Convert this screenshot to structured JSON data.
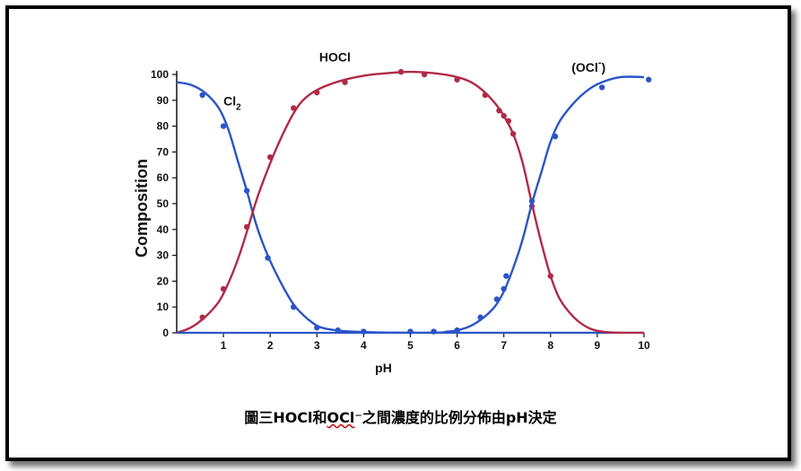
{
  "chart_data": {
    "type": "line",
    "xlabel": "pH",
    "ylabel": "Composition",
    "xlim": [
      0,
      10
    ],
    "ylim": [
      0,
      100
    ],
    "x_ticks": [
      1,
      2,
      3,
      4,
      5,
      6,
      7,
      8,
      9,
      10
    ],
    "y_ticks": [
      0,
      10,
      20,
      30,
      40,
      50,
      60,
      70,
      80,
      90,
      100
    ],
    "series": [
      {
        "name": "Cl2",
        "color": "#2a55c8",
        "curve": [
          [
            0,
            97
          ],
          [
            0.3,
            96
          ],
          [
            0.6,
            93
          ],
          [
            0.9,
            87
          ],
          [
            1.1,
            79
          ],
          [
            1.3,
            67
          ],
          [
            1.5,
            55
          ],
          [
            1.7,
            42
          ],
          [
            1.9,
            32
          ],
          [
            2.1,
            24
          ],
          [
            2.3,
            17
          ],
          [
            2.5,
            11
          ],
          [
            2.7,
            7
          ],
          [
            2.9,
            4
          ],
          [
            3.1,
            2
          ],
          [
            3.5,
            0.8
          ],
          [
            4,
            0.3
          ],
          [
            5,
            0
          ],
          [
            6,
            0
          ],
          [
            7,
            0
          ],
          [
            8,
            0
          ],
          [
            9,
            0
          ],
          [
            10,
            0
          ]
        ],
        "points": [
          [
            0.55,
            92
          ],
          [
            1.0,
            80
          ],
          [
            1.5,
            55
          ],
          [
            1.95,
            29
          ],
          [
            2.5,
            10
          ],
          [
            3.0,
            2
          ],
          [
            3.45,
            1
          ],
          [
            4.0,
            0.5
          ]
        ]
      },
      {
        "name": "HOCl",
        "color": "#b02a48",
        "curve": [
          [
            0,
            0
          ],
          [
            0.3,
            2
          ],
          [
            0.6,
            6
          ],
          [
            0.9,
            12
          ],
          [
            1.1,
            19
          ],
          [
            1.3,
            28
          ],
          [
            1.5,
            39
          ],
          [
            1.7,
            51
          ],
          [
            1.9,
            61
          ],
          [
            2.1,
            70
          ],
          [
            2.3,
            78
          ],
          [
            2.5,
            85
          ],
          [
            2.7,
            90
          ],
          [
            3.0,
            94
          ],
          [
            3.5,
            97.5
          ],
          [
            4,
            99.5
          ],
          [
            4.5,
            100.5
          ],
          [
            5,
            101
          ],
          [
            5.5,
            100.5
          ],
          [
            6,
            99
          ],
          [
            6.3,
            97
          ],
          [
            6.6,
            93
          ],
          [
            6.85,
            88
          ],
          [
            7.0,
            84
          ],
          [
            7.2,
            77
          ],
          [
            7.4,
            66
          ],
          [
            7.6,
            50
          ],
          [
            7.8,
            35
          ],
          [
            8.0,
            22
          ],
          [
            8.2,
            13
          ],
          [
            8.5,
            6
          ],
          [
            8.8,
            2
          ],
          [
            9.1,
            0.5
          ],
          [
            9.5,
            0
          ],
          [
            10,
            0
          ]
        ],
        "points": [
          [
            0.55,
            6
          ],
          [
            1.0,
            17
          ],
          [
            1.5,
            41
          ],
          [
            2.0,
            68
          ],
          [
            2.5,
            87
          ],
          [
            3.0,
            93
          ],
          [
            3.6,
            97
          ],
          [
            4.8,
            101
          ],
          [
            5.3,
            100
          ],
          [
            6.0,
            98
          ],
          [
            6.6,
            92
          ],
          [
            6.9,
            86
          ],
          [
            7.0,
            84
          ],
          [
            7.1,
            82
          ],
          [
            7.2,
            77
          ],
          [
            7.6,
            49
          ],
          [
            8.0,
            22
          ]
        ]
      },
      {
        "name": "(OCl-)",
        "color": "#2a55c8",
        "curve": [
          [
            0,
            0
          ],
          [
            5,
            0
          ],
          [
            5.8,
            0.5
          ],
          [
            6.2,
            2
          ],
          [
            6.5,
            5
          ],
          [
            6.8,
            10
          ],
          [
            7.0,
            16
          ],
          [
            7.2,
            25
          ],
          [
            7.4,
            36
          ],
          [
            7.6,
            50
          ],
          [
            7.8,
            62
          ],
          [
            8.0,
            74
          ],
          [
            8.2,
            82
          ],
          [
            8.5,
            89
          ],
          [
            8.8,
            94
          ],
          [
            9.1,
            97
          ],
          [
            9.5,
            99
          ],
          [
            10,
            99
          ]
        ],
        "points": [
          [
            5.0,
            0.5
          ],
          [
            5.5,
            0.5
          ],
          [
            6.0,
            1
          ],
          [
            6.5,
            6
          ],
          [
            6.85,
            13
          ],
          [
            7.0,
            17
          ],
          [
            7.05,
            22
          ],
          [
            7.6,
            51
          ],
          [
            8.1,
            76
          ],
          [
            9.1,
            95
          ],
          [
            10.1,
            98
          ]
        ]
      }
    ],
    "annotations": [
      {
        "series_label": "Cl",
        "sub": "2",
        "x": 1.0,
        "y": 88
      },
      {
        "series_label": "HOCl",
        "x": 3.05,
        "y": 105
      },
      {
        "series_label": "(OCl",
        "sup": "-",
        "close": ")",
        "x": 8.45,
        "y": 101
      }
    ]
  },
  "caption": {
    "prefix": "圖三HOCl和",
    "underlined": "OCl",
    "suffix": "⁻之間濃度的比例分佈由pH決定"
  }
}
